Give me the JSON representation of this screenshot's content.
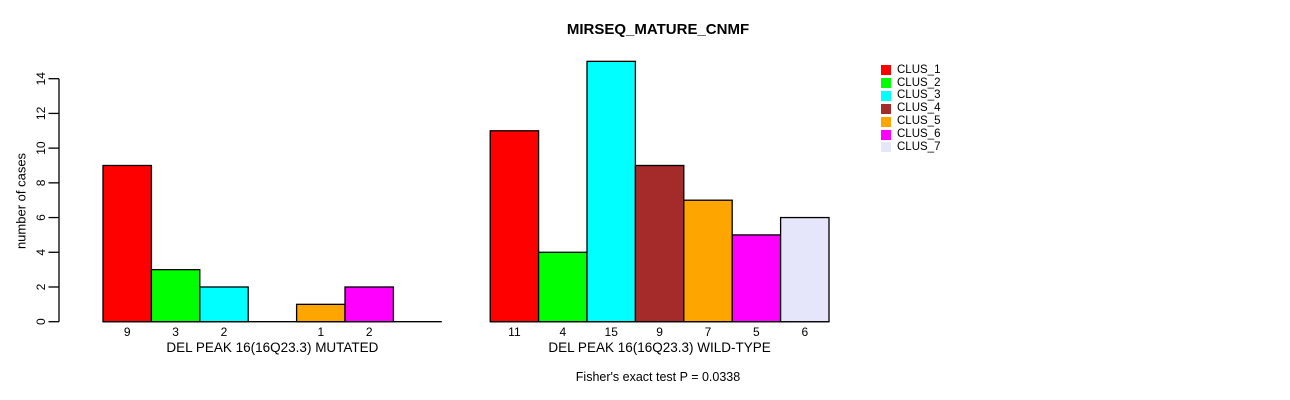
{
  "chart_data": {
    "type": "bar",
    "title": "MIRSEQ_MATURE_CNMF",
    "ylabel": "number of cases",
    "ylim": [
      0,
      14
    ],
    "yticks": [
      0,
      2,
      4,
      6,
      8,
      10,
      12,
      14
    ],
    "grid": false,
    "legend_position": "right",
    "categories": [
      "DEL PEAK 16(16Q23.3) MUTATED",
      "DEL PEAK 16(16Q23.3) WILD-TYPE"
    ],
    "series": [
      {
        "name": "CLUS_1",
        "color": "#FF0000",
        "values": [
          9,
          11
        ]
      },
      {
        "name": "CLUS_2",
        "color": "#00FF00",
        "values": [
          3,
          4
        ]
      },
      {
        "name": "CLUS_3",
        "color": "#00FFFF",
        "values": [
          2,
          15
        ]
      },
      {
        "name": "CLUS_4",
        "color": "#A52A2A",
        "values": [
          0,
          9
        ]
      },
      {
        "name": "CLUS_5",
        "color": "#FFA500",
        "values": [
          1,
          7
        ]
      },
      {
        "name": "CLUS_6",
        "color": "#FF00FF",
        "values": [
          2,
          5
        ]
      },
      {
        "name": "CLUS_7",
        "color": "#E6E6FA",
        "values": [
          0,
          6
        ]
      }
    ],
    "bar_value_labels_note": "bar counts shown below each bar; zero-count bars drawn as flat segments with no label",
    "note": "Fisher's exact test P = 0.0338"
  }
}
